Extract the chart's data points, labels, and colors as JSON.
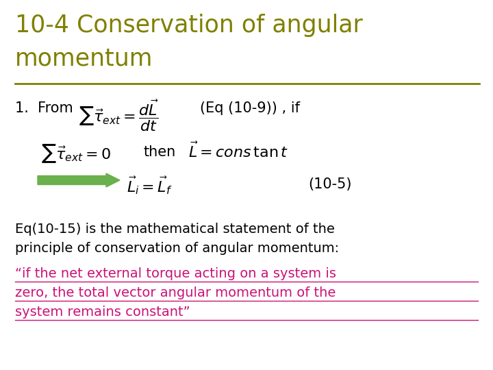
{
  "title_line1": "10-4 Conservation of angular",
  "title_line2": "momentum",
  "title_color": "#808000",
  "title_fontsize": 25,
  "bg_color": "#ffffff",
  "line_color": "#808000",
  "body_fontsize": 15,
  "math_fontsize": 15,
  "pink_color": "#cc1177",
  "black_color": "#000000",
  "arrow_color": "#6ab04c",
  "paragraph1_line1": "Eq(10-15) is the mathematical statement of the",
  "paragraph1_line2": "principle of conservation of angular momentum:",
  "paragraph2_line1": "“if the net external torque acting on a system is",
  "paragraph2_line2": "zero, the total vector angular momentum of the",
  "paragraph2_line3": "system remains constant”",
  "ref_10_9": "(Eq (10-9)) , if",
  "ref_10_5": "(10-5)",
  "label_1_from": "1.  From",
  "label_then": "then"
}
